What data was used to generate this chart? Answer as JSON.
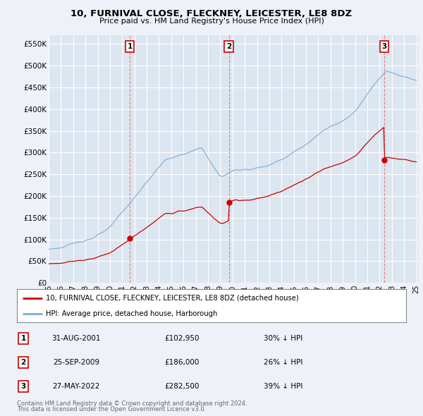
{
  "title": "10, FURNIVAL CLOSE, FLECKNEY, LEICESTER, LE8 8DZ",
  "subtitle": "Price paid vs. HM Land Registry's House Price Index (HPI)",
  "hpi_color": "#7aadd4",
  "price_color": "#cc0000",
  "background_color": "#eef2f8",
  "plot_bg_color": "#dce6f0",
  "grid_color": "#ffffff",
  "ylim": [
    0,
    570000
  ],
  "yticks": [
    0,
    50000,
    100000,
    150000,
    200000,
    250000,
    300000,
    350000,
    400000,
    450000,
    500000,
    550000
  ],
  "ytick_labels": [
    "£0",
    "£50K",
    "£100K",
    "£150K",
    "£200K",
    "£250K",
    "£300K",
    "£350K",
    "£400K",
    "£450K",
    "£500K",
    "£550K"
  ],
  "sale_dates_str": [
    "31-AUG-2001",
    "25-SEP-2009",
    "27-MAY-2022"
  ],
  "sale_years_f": [
    2001.625,
    2009.708,
    2022.375
  ],
  "sale_prices": [
    102950,
    186000,
    282500
  ],
  "sale_labels": [
    "1",
    "2",
    "3"
  ],
  "sale_pct": [
    "30% ↓ HPI",
    "26% ↓ HPI",
    "39% ↓ HPI"
  ],
  "legend_line1": "10, FURNIVAL CLOSE, FLECKNEY, LEICESTER, LE8 8DZ (detached house)",
  "legend_line2": "HPI: Average price, detached house, Harborough",
  "footer1": "Contains HM Land Registry data © Crown copyright and database right 2024.",
  "footer2": "This data is licensed under the Open Government Licence v3.0.",
  "table_rows": [
    [
      "1",
      "31-AUG-2001",
      "£102,950",
      "30% ↓ HPI"
    ],
    [
      "2",
      "25-SEP-2009",
      "£186,000",
      "26% ↓ HPI"
    ],
    [
      "3",
      "27-MAY-2022",
      "£282,500",
      "39% ↓ HPI"
    ]
  ]
}
